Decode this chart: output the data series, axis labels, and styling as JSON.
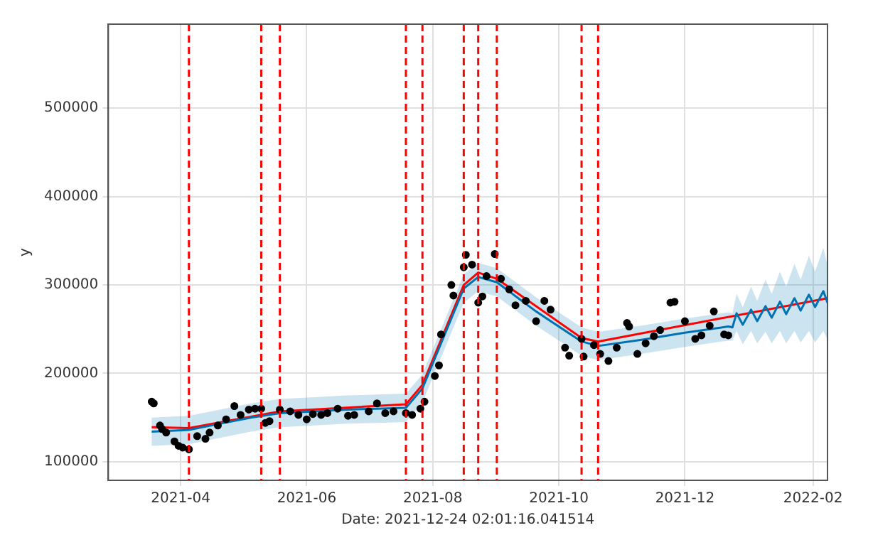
{
  "chart_data": {
    "type": "line",
    "xlabel": "Date: 2021-12-24 02:01:16.041514",
    "ylabel": "y",
    "xlim": [
      "2021-02-25",
      "2022-02-08"
    ],
    "xticks": [
      "2021-04",
      "2021-06",
      "2021-08",
      "2021-10",
      "2021-12",
      "2022-02"
    ],
    "ylim": [
      79000,
      595000
    ],
    "yticks": [
      100000,
      200000,
      300000,
      400000,
      500000
    ],
    "grid": true,
    "series": [
      {
        "type": "scatter",
        "color": "#000000",
        "marker": "circle",
        "x": [
          "2021-03-18",
          "2021-03-19",
          "2021-03-22",
          "2021-03-23",
          "2021-03-25",
          "2021-03-29",
          "2021-03-31",
          "2021-04-02",
          "2021-04-05",
          "2021-04-09",
          "2021-04-13",
          "2021-04-15",
          "2021-04-19",
          "2021-04-23",
          "2021-04-27",
          "2021-04-30",
          "2021-05-04",
          "2021-05-07",
          "2021-05-10",
          "2021-05-12",
          "2021-05-14",
          "2021-05-19",
          "2021-05-24",
          "2021-05-28",
          "2021-06-01",
          "2021-06-04",
          "2021-06-08",
          "2021-06-11",
          "2021-06-16",
          "2021-06-21",
          "2021-06-24",
          "2021-07-01",
          "2021-07-05",
          "2021-07-09",
          "2021-07-13",
          "2021-07-19",
          "2021-07-22",
          "2021-07-26",
          "2021-07-28",
          "2021-08-02",
          "2021-08-04",
          "2021-08-05",
          "2021-08-10",
          "2021-08-11",
          "2021-08-16",
          "2021-08-17",
          "2021-08-20",
          "2021-08-23",
          "2021-08-25",
          "2021-08-27",
          "2021-08-31",
          "2021-09-03",
          "2021-09-07",
          "2021-09-10",
          "2021-09-15",
          "2021-09-20",
          "2021-09-24",
          "2021-09-27",
          "2021-10-04",
          "2021-10-06",
          "2021-10-12",
          "2021-10-13",
          "2021-10-18",
          "2021-10-21",
          "2021-10-25",
          "2021-10-29",
          "2021-11-03",
          "2021-11-04",
          "2021-11-08",
          "2021-11-12",
          "2021-11-16",
          "2021-11-19",
          "2021-11-24",
          "2021-11-26",
          "2021-12-01",
          "2021-12-06",
          "2021-12-09",
          "2021-12-13",
          "2021-12-15",
          "2021-12-20",
          "2021-12-22"
        ],
        "values": [
          168000,
          166000,
          141000,
          137000,
          133000,
          123000,
          118000,
          116000,
          114000,
          129000,
          126000,
          133000,
          141000,
          148000,
          163000,
          153000,
          159000,
          160000,
          160000,
          144000,
          146000,
          159000,
          157000,
          153000,
          148000,
          154000,
          153000,
          155000,
          160000,
          152000,
          153000,
          157000,
          166000,
          155000,
          157000,
          155000,
          153000,
          160000,
          168000,
          197000,
          209000,
          244000,
          300000,
          288000,
          320000,
          334000,
          323000,
          280000,
          287000,
          310000,
          335000,
          307000,
          295000,
          277000,
          282000,
          259000,
          282000,
          272000,
          229000,
          220000,
          239000,
          219000,
          232000,
          222000,
          214000,
          229000,
          257000,
          253000,
          222000,
          234000,
          242000,
          249000,
          280000,
          281000,
          259000,
          239000,
          243000,
          254000,
          270000,
          244000,
          243000
        ]
      },
      {
        "type": "line",
        "color": "#0072b2",
        "marker": "none",
        "x": [
          "2021-03-18",
          "2021-04-05",
          "2021-04-20",
          "2021-05-05",
          "2021-05-19",
          "2021-06-05",
          "2021-06-20",
          "2021-07-05",
          "2021-07-19",
          "2021-07-27",
          "2021-08-16",
          "2021-08-23",
          "2021-09-01",
          "2021-09-20",
          "2021-10-12",
          "2021-10-20",
          "2021-11-10",
          "2021-12-01",
          "2021-12-22",
          "2021-12-24",
          "2021-12-26",
          "2021-12-29",
          "2022-01-02",
          "2022-01-05",
          "2022-01-09",
          "2022-01-12",
          "2022-01-16",
          "2022-01-19",
          "2022-01-23",
          "2022-01-26",
          "2022-01-30",
          "2022-02-02",
          "2022-02-06",
          "2022-02-08"
        ],
        "values": [
          134000,
          136000,
          143000,
          150000,
          155000,
          157000,
          159000,
          160000,
          161000,
          183000,
          296000,
          309000,
          303000,
          270000,
          236000,
          231000,
          238000,
          246000,
          253000,
          252000,
          268000,
          255000,
          272000,
          259000,
          276000,
          263000,
          281000,
          267000,
          285000,
          271000,
          289000,
          275000,
          293000,
          280000
        ],
        "lower": [
          118000,
          120000,
          127000,
          134000,
          139000,
          141000,
          143000,
          144000,
          145000,
          167000,
          280000,
          293000,
          287000,
          254000,
          220000,
          215000,
          222000,
          230000,
          237000,
          237000,
          248000,
          233000,
          248000,
          234000,
          247000,
          234000,
          248000,
          234000,
          248000,
          235000,
          248000,
          235000,
          248000,
          238000
        ],
        "upper": [
          150000,
          152000,
          159000,
          166000,
          171000,
          173000,
          175000,
          176000,
          177000,
          199000,
          312000,
          325000,
          319000,
          286000,
          252000,
          247000,
          254000,
          262000,
          269000,
          268000,
          290000,
          275000,
          298000,
          282000,
          306000,
          290000,
          315000,
          298000,
          324000,
          306000,
          333000,
          315000,
          342000,
          322000
        ]
      },
      {
        "type": "line",
        "color": "#ff0000",
        "marker": "none",
        "x": [
          "2021-03-18",
          "2021-04-05",
          "2021-05-19",
          "2021-07-19",
          "2021-07-27",
          "2021-08-16",
          "2021-08-23",
          "2021-09-01",
          "2021-10-12",
          "2021-10-20",
          "2022-02-08"
        ],
        "values": [
          139000,
          138000,
          157000,
          165000,
          187000,
          300000,
          314000,
          307000,
          240000,
          236000,
          285000
        ]
      }
    ],
    "ref_lines": [
      {
        "axis": "x",
        "value": "2021-04-05",
        "color": "#ff0000",
        "line_style": "dashed"
      },
      {
        "axis": "x",
        "value": "2021-05-10",
        "color": "#ff0000",
        "line_style": "dashed"
      },
      {
        "axis": "x",
        "value": "2021-05-19",
        "color": "#ff0000",
        "line_style": "dashed"
      },
      {
        "axis": "x",
        "value": "2021-07-19",
        "color": "#ff0000",
        "line_style": "dashed"
      },
      {
        "axis": "x",
        "value": "2021-07-27",
        "color": "#ff0000",
        "line_style": "dashed"
      },
      {
        "axis": "x",
        "value": "2021-08-16",
        "color": "#ff0000",
        "line_style": "dashed"
      },
      {
        "axis": "x",
        "value": "2021-08-23",
        "color": "#ff0000",
        "line_style": "dashed"
      },
      {
        "axis": "x",
        "value": "2021-09-01",
        "color": "#ff0000",
        "line_style": "dashed"
      },
      {
        "axis": "x",
        "value": "2021-10-12",
        "color": "#ff0000",
        "line_style": "dashed"
      },
      {
        "axis": "x",
        "value": "2021-10-20",
        "color": "#ff0000",
        "line_style": "dashed"
      }
    ]
  }
}
